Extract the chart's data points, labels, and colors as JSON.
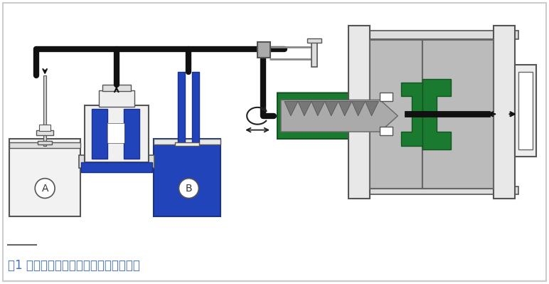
{
  "title": "图1 液体硅橡胶注射成型工艺流程示意图",
  "title_color": "#4472C4",
  "bg_color": "#FFFFFF",
  "fig_width": 7.72,
  "fig_height": 3.99,
  "label_A": "A",
  "label_B": "B",
  "blue_liquid": "#2244BB",
  "dark_blue_rod": "#2244BB",
  "gray_barrel": "#AAAAAA",
  "green_color": "#1A7A30",
  "light_green": "#228B35",
  "dark_green": "#1A6628",
  "pipe_color": "#111111",
  "frame_gray": "#CCCCCC",
  "dark_gray": "#888888",
  "mid_gray": "#AAAAAA",
  "light_gray": "#DDDDDD",
  "outline": "#444444"
}
